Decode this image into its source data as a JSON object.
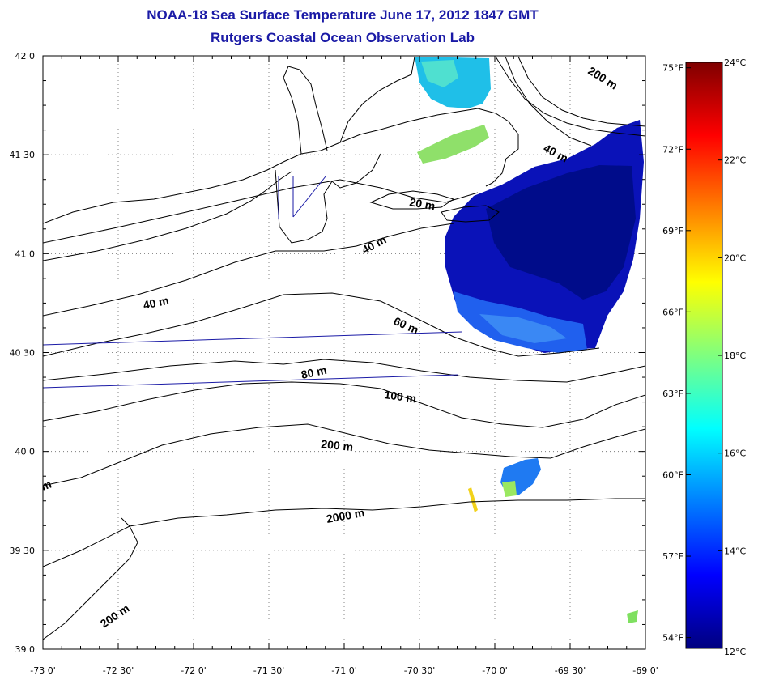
{
  "title": {
    "line1": "NOAA-18 Sea Surface Temperature June 17, 2012 1847 GMT",
    "line2": "Rutgers Coastal Ocean Observation Lab"
  },
  "map": {
    "lon_labels": [
      "-73 0'",
      "-72 30'",
      "-72 0'",
      "-71 30'",
      "-71 0'",
      "-70 30'",
      "-70 0'",
      "-69 30'",
      "-69 0'"
    ],
    "lat_labels": [
      "42 0'",
      "41 30'",
      "41 0'",
      "40 30'",
      "40 0'",
      "39 30'",
      "39 0'"
    ],
    "lon_range": [
      -73.0,
      -69.0
    ],
    "lat_range": [
      39.0,
      42.0
    ],
    "contour_labels": [
      "200 m",
      "40 m",
      "20 m",
      "40 m",
      "40 m",
      "60 m",
      "80 m",
      "100 m",
      "200 m",
      "2000 m",
      "200 m",
      "m"
    ]
  },
  "colorbar": {
    "celsius_labels": [
      "24°C",
      "22°C",
      "20°C",
      "18°C",
      "16°C",
      "14°C",
      "12°C"
    ],
    "celsius_values": [
      24,
      22,
      20,
      18,
      16,
      14,
      12
    ],
    "fahrenheit_labels": [
      "75°F",
      "72°F",
      "69°F",
      "66°F",
      "63°F",
      "60°F",
      "57°F",
      "54°F"
    ],
    "fahrenheit_values": [
      75,
      72,
      69,
      66,
      63,
      60,
      57,
      54
    ],
    "range_c": [
      12,
      24
    ],
    "colors": [
      "#00007f",
      "#0000ff",
      "#007fff",
      "#00ffff",
      "#7fff7f",
      "#ffff00",
      "#ff7f00",
      "#ff0000",
      "#7f0000"
    ]
  }
}
